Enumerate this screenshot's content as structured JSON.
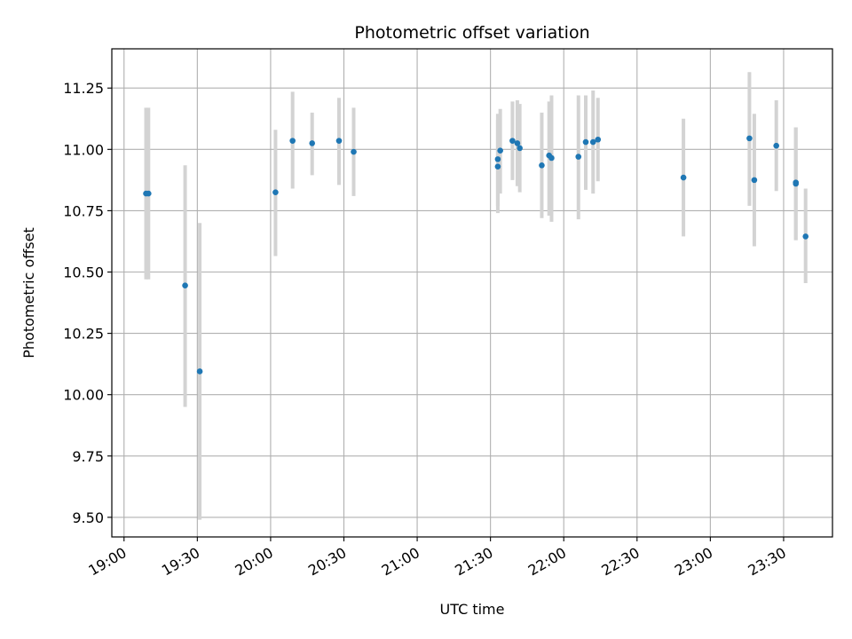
{
  "chart_data": {
    "type": "scatter",
    "title": "Photometric offset variation",
    "xlabel": "UTC time",
    "ylabel": "Photometric offset",
    "xlim": [
      "18:55",
      "23:50"
    ],
    "ylim": [
      9.42,
      11.41
    ],
    "grid": true,
    "x_ticks": [
      "19:00",
      "19:30",
      "20:00",
      "20:30",
      "21:00",
      "21:30",
      "22:00",
      "22:30",
      "23:00",
      "23:30"
    ],
    "y_ticks": [
      9.5,
      9.75,
      10.0,
      10.25,
      10.5,
      10.75,
      11.0,
      11.25
    ],
    "y_tick_labels": [
      "9.50",
      "9.75",
      "10.00",
      "10.25",
      "10.50",
      "10.75",
      "11.00",
      "11.25"
    ],
    "colors": {
      "point": "#1f77b4",
      "errorbar": "#d3d3d3",
      "grid": "#b0b0b0"
    },
    "series": [
      {
        "points": [
          {
            "x": "19:09",
            "y": 10.82,
            "low": 10.47,
            "high": 11.17
          },
          {
            "x": "19:10",
            "y": 10.82,
            "low": 10.47,
            "high": 11.17
          },
          {
            "x": "19:25",
            "y": 10.445,
            "low": 9.95,
            "high": 10.935
          },
          {
            "x": "19:31",
            "y": 10.095,
            "low": 9.49,
            "high": 10.7
          },
          {
            "x": "20:02",
            "y": 10.825,
            "low": 10.565,
            "high": 11.08
          },
          {
            "x": "20:09",
            "y": 11.035,
            "low": 10.84,
            "high": 11.235
          },
          {
            "x": "20:17",
            "y": 11.025,
            "low": 10.895,
            "high": 11.15
          },
          {
            "x": "20:28",
            "y": 11.035,
            "low": 10.855,
            "high": 11.21
          },
          {
            "x": "20:34",
            "y": 10.99,
            "low": 10.81,
            "high": 11.17
          },
          {
            "x": "21:33",
            "y": 10.96,
            "low": 10.77,
            "high": 11.145
          },
          {
            "x": "21:33",
            "y": 10.93,
            "low": 10.74,
            "high": 11.12
          },
          {
            "x": "21:34",
            "y": 10.995,
            "low": 10.82,
            "high": 11.165
          },
          {
            "x": "21:39",
            "y": 11.035,
            "low": 10.875,
            "high": 11.195
          },
          {
            "x": "21:41",
            "y": 11.025,
            "low": 10.85,
            "high": 11.2
          },
          {
            "x": "21:42",
            "y": 11.005,
            "low": 10.825,
            "high": 11.185
          },
          {
            "x": "21:51",
            "y": 10.935,
            "low": 10.72,
            "high": 11.15
          },
          {
            "x": "21:54",
            "y": 10.975,
            "low": 10.73,
            "high": 11.195
          },
          {
            "x": "21:55",
            "y": 10.965,
            "low": 10.705,
            "high": 11.22
          },
          {
            "x": "22:06",
            "y": 10.97,
            "low": 10.715,
            "high": 11.22
          },
          {
            "x": "22:09",
            "y": 11.03,
            "low": 10.835,
            "high": 11.22
          },
          {
            "x": "22:12",
            "y": 11.03,
            "low": 10.82,
            "high": 11.24
          },
          {
            "x": "22:14",
            "y": 11.04,
            "low": 10.87,
            "high": 11.21
          },
          {
            "x": "22:49",
            "y": 10.885,
            "low": 10.645,
            "high": 11.125
          },
          {
            "x": "23:16",
            "y": 11.045,
            "low": 10.77,
            "high": 11.315
          },
          {
            "x": "23:18",
            "y": 10.875,
            "low": 10.605,
            "high": 11.145
          },
          {
            "x": "23:27",
            "y": 11.015,
            "low": 10.83,
            "high": 11.2
          },
          {
            "x": "23:35",
            "y": 10.865,
            "low": 10.63,
            "high": 11.09
          },
          {
            "x": "23:35",
            "y": 10.86,
            "low": 10.63,
            "high": 11.09
          },
          {
            "x": "23:39",
            "y": 10.645,
            "low": 10.455,
            "high": 10.84
          }
        ]
      }
    ]
  }
}
